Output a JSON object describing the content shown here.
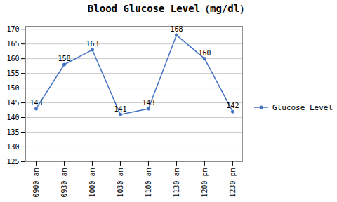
{
  "chart_data": {
    "type": "line",
    "title": "Blood Glucose Level（mg/dl）",
    "categories": [
      "0900 am",
      "0930 am",
      "1000 am",
      "1030 am",
      "1100 am",
      "1130 am",
      "1200 pm",
      "1230 pm"
    ],
    "series": [
      {
        "name": "Glucose Level",
        "color": "#4472C4",
        "marker": "circle",
        "values": [
          143,
          158,
          163,
          141,
          143,
          168,
          160,
          142
        ]
      }
    ],
    "ylim": [
      125,
      171
    ],
    "yticks": [
      125,
      130,
      135,
      140,
      145,
      150,
      155,
      160,
      165,
      170
    ],
    "grid": true,
    "legend": "right",
    "data_labels": true
  }
}
